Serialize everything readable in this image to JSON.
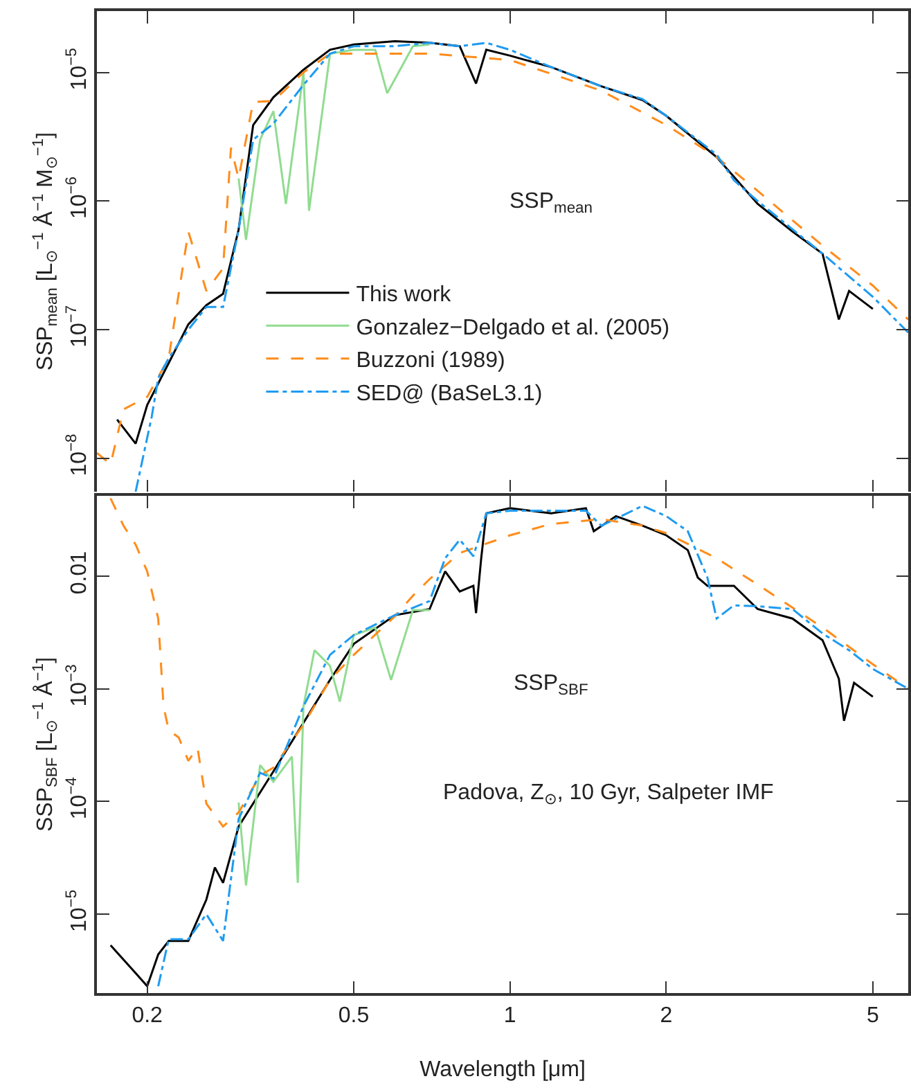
{
  "chart_data": [
    {
      "type": "line",
      "ylabel": "SSP$_{mean}$ [L$_{⊙}$$^{−1}$ Å$^{−1}$ M$_{⊙}$$^{−1}$]",
      "annotations": [
        "SSP$_{mean}$"
      ],
      "log": "xy",
      "xlim": [
        0.16,
        5.85
      ],
      "xticks": [
        0.2,
        0.5,
        1,
        2,
        5
      ],
      "ylim": [
        5.5e-09,
        3e-05
      ],
      "yticks": [
        {
          "value": 1e-08,
          "label": "10$^{−8}$"
        },
        {
          "value": 1e-07,
          "label": "10$^{−7}$"
        },
        {
          "value": 1e-06,
          "label": "10$^{−6}$"
        },
        {
          "value": 1e-05,
          "label": "10$^{−5}$"
        }
      ],
      "tick_labels": "y",
      "grid": false,
      "legend": "center",
      "marker": "none",
      "series": [
        {
          "name": "This work",
          "color": "#000000",
          "line_style": "solid",
          "x": [
            0.175,
            0.19,
            0.2,
            0.22,
            0.24,
            0.26,
            0.28,
            0.3,
            0.32,
            0.35,
            0.4,
            0.45,
            0.5,
            0.6,
            0.7,
            0.8,
            0.86,
            0.9,
            1.0,
            1.2,
            1.5,
            1.8,
            2.0,
            2.5,
            3.0,
            3.5,
            4.0,
            4.3,
            4.5,
            5.0
          ],
          "values": [
            2e-08,
            1.3e-08,
            2.6e-08,
            5.5e-08,
            1.1e-07,
            1.55e-07,
            1.9e-07,
            6e-07,
            3.9e-06,
            6.4e-06,
            1.05e-05,
            1.5e-05,
            1.65e-05,
            1.75e-05,
            1.7e-05,
            1.6e-05,
            8.2e-06,
            1.5e-05,
            1.35e-05,
            1.1e-05,
            7.8e-06,
            6.1e-06,
            4.6e-06,
            2.2e-06,
            9.5e-07,
            5.8e-07,
            3.9e-07,
            1.2e-07,
            2e-07,
            1.45e-07
          ]
        },
        {
          "name": "Gonzalez−Delgado et al. (2005)",
          "color": "#90dc90",
          "line_style": "solid",
          "x": [
            0.3,
            0.31,
            0.33,
            0.35,
            0.37,
            0.4,
            0.41,
            0.45,
            0.5,
            0.55,
            0.58,
            0.65,
            0.7
          ],
          "values": [
            1.5e-06,
            5e-07,
            3e-06,
            5e-06,
            9.5e-07,
            1e-05,
            8.4e-07,
            1.4e-05,
            1.5e-05,
            1.5e-05,
            6.9e-06,
            1.6e-05,
            1.65e-05
          ]
        },
        {
          "name": "Buzzoni (1989)",
          "color": "#ff8c1a",
          "line_style": "dashed",
          "x": [
            0.16,
            0.17,
            0.18,
            0.2,
            0.22,
            0.24,
            0.26,
            0.28,
            0.29,
            0.3,
            0.32,
            0.35,
            0.4,
            0.45,
            0.5,
            0.7,
            1.0,
            1.5,
            2.0,
            2.5,
            3.0,
            4.0,
            5.0,
            5.85
          ],
          "values": [
            1.1e-08,
            9e-09,
            2.4e-08,
            3e-08,
            6e-08,
            5.8e-07,
            2e-07,
            3e-07,
            2.6e-06,
            1.5e-06,
            5.9e-06,
            6e-06,
            1e-05,
            1.4e-05,
            1.4e-05,
            1.4e-05,
            1.25e-05,
            7.2e-06,
            3.9e-06,
            2.2e-06,
            1.2e-06,
            4.5e-07,
            2.2e-07,
            1.2e-07
          ]
        },
        {
          "name": "SED@ (BaSeL3.1)",
          "color": "#1e9bf0",
          "line_style": "dashdot",
          "x": [
            0.19,
            0.204,
            0.21,
            0.22,
            0.24,
            0.26,
            0.28,
            0.3,
            0.32,
            0.35,
            0.4,
            0.45,
            0.5,
            0.6,
            0.7,
            0.8,
            0.9,
            1.0,
            1.2,
            1.5,
            1.8,
            2.0,
            2.5,
            2.7,
            3.0,
            4.0,
            5.0,
            5.85
          ],
          "values": [
            5.5e-09,
            2.1e-08,
            4.2e-08,
            6e-08,
            1e-07,
            1.5e-07,
            1.5e-07,
            6e-07,
            3e-06,
            4e-06,
            8e-06,
            1.4e-05,
            1.6e-05,
            1.6e-05,
            1.7e-05,
            1.6e-05,
            1.7e-05,
            1.5e-05,
            1.1e-05,
            7.8e-06,
            6.2e-06,
            4.6e-06,
            2.3e-06,
            1.45e-06,
            1e-06,
            3.9e-07,
            1.8e-07,
            9.5e-08
          ]
        }
      ]
    },
    {
      "type": "line",
      "xlabel": "Wavelength [μm]",
      "ylabel": "SSP$_{SBF}$ [L$_{⊙}$$^{−1}$ Å$^{−1}$]",
      "annotations": [
        "SSP$_{SBF}$",
        "Padova, Z$_{⊙}$, 10 Gyr, Salpeter IMF"
      ],
      "log": "xy",
      "xlim": [
        0.16,
        5.85
      ],
      "xticks": [
        0.2,
        0.5,
        1,
        2,
        5
      ],
      "ylim": [
        2e-06,
        0.0515
      ],
      "yticks": [
        {
          "value": 1e-05,
          "label": "10$^{−5}$"
        },
        {
          "value": 0.0001,
          "label": "10$^{−4}$"
        },
        {
          "value": 0.001,
          "label": "10$^{−3}$"
        },
        0.01
      ],
      "grid": false,
      "legend": false,
      "marker": "none",
      "series": [
        {
          "color": "#000000",
          "line_style": "solid",
          "x": [
            0.17,
            0.19,
            0.2,
            0.21,
            0.22,
            0.24,
            0.26,
            0.27,
            0.28,
            0.3,
            0.35,
            0.45,
            0.5,
            0.6,
            0.7,
            0.75,
            0.8,
            0.85,
            0.86,
            0.88,
            0.9,
            1.0,
            1.2,
            1.4,
            1.45,
            1.6,
            1.8,
            2.0,
            2.2,
            2.3,
            2.4,
            2.7,
            3.0,
            3.5,
            4.0,
            4.3,
            4.4,
            4.6,
            5.0
          ],
          "values": [
            5.3e-06,
            3e-06,
            2.3e-06,
            4.4e-06,
            5.8e-06,
            5.8e-06,
            1.35e-05,
            2.6e-05,
            1.9e-05,
            6e-05,
            0.000185,
            0.0012,
            0.0025,
            0.0045,
            0.0051,
            0.011,
            0.0073,
            0.0082,
            0.0047,
            0.0144,
            0.036,
            0.04,
            0.036,
            0.04,
            0.025,
            0.034,
            0.028,
            0.023,
            0.017,
            0.0097,
            0.0082,
            0.0082,
            0.0051,
            0.0042,
            0.0027,
            0.00123,
            0.00052,
            0.00113,
            0.00085
          ]
        },
        {
          "color": "#90dc90",
          "line_style": "solid",
          "x": [
            0.3,
            0.31,
            0.33,
            0.35,
            0.38,
            0.39,
            0.4,
            0.42,
            0.45,
            0.47,
            0.5,
            0.55,
            0.59,
            0.65,
            0.7
          ],
          "values": [
            9.8e-05,
            1.8e-05,
            0.00021,
            0.00015,
            0.00025,
            1.9e-05,
            0.0007,
            0.0022,
            0.0016,
            0.00077,
            0.003,
            0.0035,
            0.0012,
            0.005,
            0.005
          ]
        },
        {
          "color": "#ff8c1a",
          "line_style": "dashed",
          "x": [
            0.17,
            0.18,
            0.19,
            0.2,
            0.21,
            0.215,
            0.22,
            0.23,
            0.24,
            0.25,
            0.26,
            0.28,
            0.3,
            0.33,
            0.35,
            0.4,
            0.45,
            0.5,
            0.6,
            0.65,
            0.7,
            0.8,
            1.0,
            1.2,
            1.5,
            1.8,
            2.0,
            2.5,
            3.0,
            4.0,
            5.0,
            5.85
          ],
          "values": [
            0.049,
            0.028,
            0.019,
            0.011,
            0.0042,
            0.0007,
            0.00043,
            0.00037,
            0.00023,
            0.0003,
            9.6e-05,
            6e-05,
            8e-05,
            0.00017,
            0.0002,
            0.00048,
            0.0012,
            0.002,
            0.0044,
            0.0067,
            0.0094,
            0.016,
            0.023,
            0.029,
            0.032,
            0.028,
            0.024,
            0.0144,
            0.0084,
            0.0035,
            0.00165,
            0.001
          ]
        },
        {
          "color": "#1e9bf0",
          "line_style": "dashdot",
          "x": [
            0.21,
            0.22,
            0.24,
            0.26,
            0.28,
            0.3,
            0.33,
            0.35,
            0.4,
            0.45,
            0.5,
            0.6,
            0.7,
            0.75,
            0.8,
            0.85,
            0.9,
            1.0,
            1.2,
            1.4,
            1.5,
            1.8,
            2.0,
            2.2,
            2.4,
            2.5,
            2.7,
            3.0,
            3.5,
            4.0,
            4.5,
            5.0,
            5.85
          ],
          "values": [
            2.3e-06,
            6e-06,
            6e-06,
            1e-05,
            5.8e-06,
            7e-05,
            0.00018,
            0.00016,
            0.0007,
            0.002,
            0.003,
            0.0045,
            0.006,
            0.0144,
            0.021,
            0.015,
            0.036,
            0.038,
            0.038,
            0.038,
            0.028,
            0.042,
            0.034,
            0.025,
            0.0097,
            0.0042,
            0.0055,
            0.0054,
            0.0051,
            0.0031,
            0.0022,
            0.0015,
            0.001
          ]
        }
      ]
    }
  ]
}
